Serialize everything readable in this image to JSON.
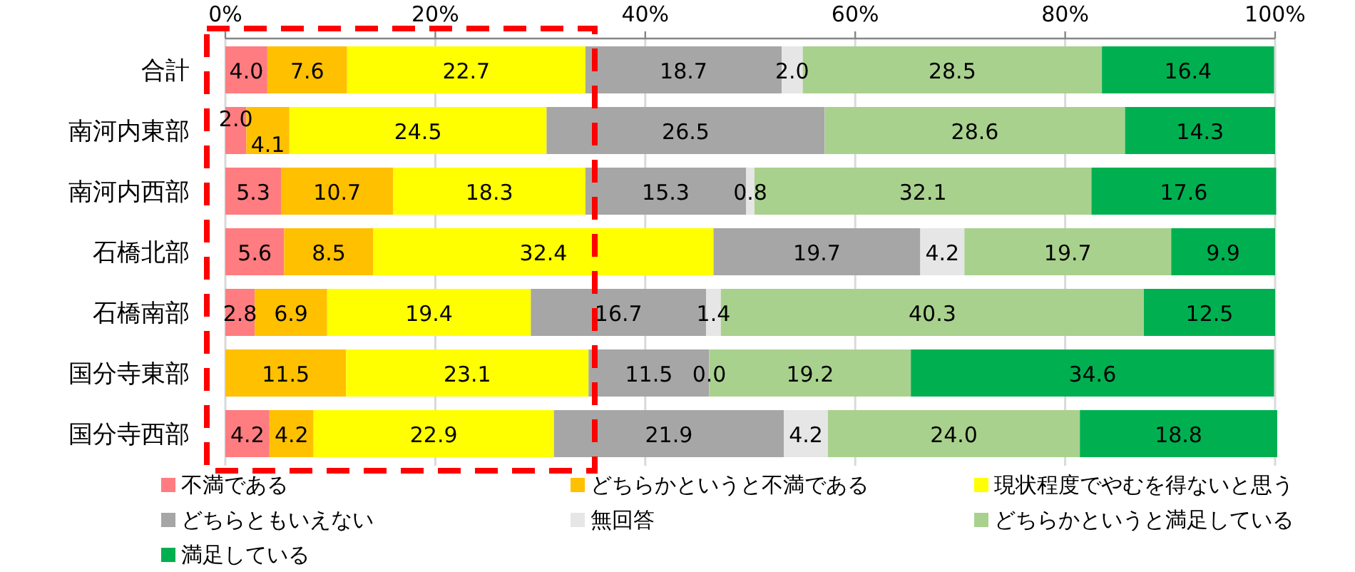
{
  "chart_data": {
    "type": "bar",
    "orientation": "horizontal",
    "stacked": true,
    "categories": [
      "合計",
      "南河内東部",
      "南河内西部",
      "石橋北部",
      "石橋南部",
      "国分寺東部",
      "国分寺西部"
    ],
    "series": [
      {
        "name": "不満である",
        "color": "#ff7c80",
        "values": [
          4.0,
          2.0,
          5.3,
          5.6,
          2.8,
          0,
          4.2
        ],
        "value_labels": [
          "4.0",
          "2.0",
          "5.3",
          "5.6",
          "2.8",
          null,
          "4.2"
        ]
      },
      {
        "name": "どちらかというと不満である",
        "color": "#ffc000",
        "values": [
          7.6,
          4.1,
          10.7,
          8.5,
          6.9,
          11.5,
          4.2
        ],
        "value_labels": [
          "7.6",
          "4.1",
          "10.7",
          "8.5",
          "6.9",
          "11.5",
          "4.2"
        ]
      },
      {
        "name": "現状程度でやむを得ないと思う",
        "color": "#ffff00",
        "values": [
          22.7,
          24.5,
          18.3,
          32.4,
          19.4,
          23.1,
          22.9
        ],
        "value_labels": [
          "22.7",
          "24.5",
          "18.3",
          "32.4",
          "19.4",
          "23.1",
          "22.9"
        ]
      },
      {
        "name": "どちらともいえない",
        "color": "#a6a6a6",
        "values": [
          18.7,
          26.5,
          15.3,
          19.7,
          16.7,
          11.5,
          21.9
        ],
        "value_labels": [
          "18.7",
          "26.5",
          "15.3",
          "19.7",
          "16.7",
          "11.5",
          "21.9"
        ]
      },
      {
        "name": "無回答",
        "color": "#e7e6e6",
        "values": [
          2.0,
          0,
          0.8,
          4.2,
          1.4,
          0.0,
          4.2
        ],
        "value_labels": [
          "2.0",
          null,
          "0.8",
          "4.2",
          "1.4",
          "0.0",
          "4.2"
        ]
      },
      {
        "name": "どちらかというと満足している",
        "color": "#a9d18e",
        "values": [
          28.5,
          28.6,
          32.1,
          19.7,
          40.3,
          19.2,
          24.0
        ],
        "value_labels": [
          "28.5",
          "28.6",
          "32.1",
          "19.7",
          "40.3",
          "19.2",
          "24.0"
        ]
      },
      {
        "name": "満足している",
        "color": "#00b050",
        "values": [
          16.4,
          14.3,
          17.6,
          9.9,
          12.5,
          34.6,
          18.8
        ],
        "value_labels": [
          "16.4",
          "14.3",
          "17.6",
          "9.9",
          "12.5",
          "34.6",
          "18.8"
        ]
      }
    ],
    "xlim": [
      0,
      100
    ],
    "xticks": [
      {
        "value": 0,
        "label": "0%"
      },
      {
        "value": 20,
        "label": "20%"
      },
      {
        "value": 40,
        "label": "40%"
      },
      {
        "value": 60,
        "label": "60%"
      },
      {
        "value": 80,
        "label": "80%"
      },
      {
        "value": 100,
        "label": "100%"
      }
    ],
    "grid": "x",
    "legend": "bottom"
  }
}
